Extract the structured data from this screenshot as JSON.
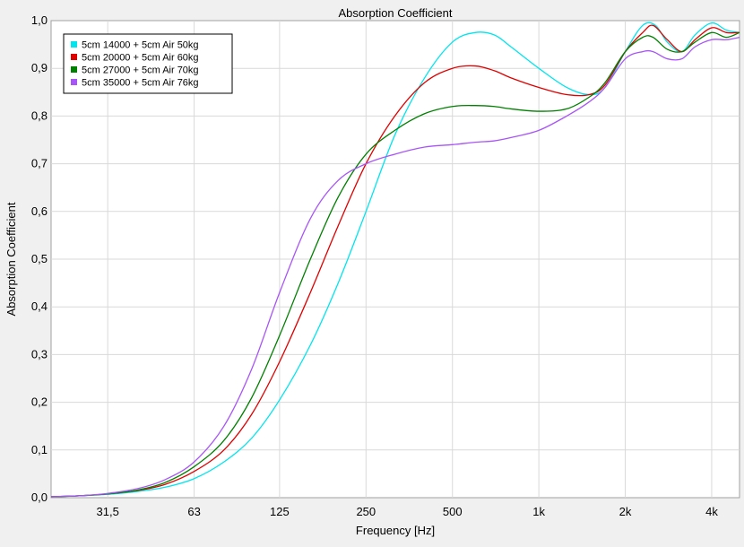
{
  "chart_data": {
    "type": "line",
    "title": "Absorption Coefficient",
    "xlabel": "Frequency [Hz]",
    "ylabel": "Absorption Coefficient",
    "x_scale": "log",
    "xlim": [
      20,
      5000
    ],
    "ylim": [
      0,
      1
    ],
    "grid": true,
    "legend_position": "top-left",
    "x_ticks": [
      {
        "value": 31.5,
        "label": "31,5"
      },
      {
        "value": 63,
        "label": "63"
      },
      {
        "value": 125,
        "label": "125"
      },
      {
        "value": 250,
        "label": "250"
      },
      {
        "value": 500,
        "label": "500"
      },
      {
        "value": 1000,
        "label": "1k"
      },
      {
        "value": 2000,
        "label": "2k"
      },
      {
        "value": 4000,
        "label": "4k"
      }
    ],
    "y_ticks": [
      {
        "value": 0,
        "label": "0,0"
      },
      {
        "value": 0.1,
        "label": "0,1"
      },
      {
        "value": 0.2,
        "label": "0,2"
      },
      {
        "value": 0.3,
        "label": "0,3"
      },
      {
        "value": 0.4,
        "label": "0,4"
      },
      {
        "value": 0.5,
        "label": "0,5"
      },
      {
        "value": 0.6,
        "label": "0,6"
      },
      {
        "value": 0.7,
        "label": "0,7"
      },
      {
        "value": 0.8,
        "label": "0,8"
      },
      {
        "value": 0.9,
        "label": "0,9"
      },
      {
        "value": 1,
        "label": "1,0"
      }
    ],
    "series": [
      {
        "name": "5cm 14000 + 5cm Air 50kg",
        "color": "#00e5ee",
        "points": [
          [
            20,
            0.002
          ],
          [
            25,
            0.004
          ],
          [
            31.5,
            0.007
          ],
          [
            40,
            0.013
          ],
          [
            50,
            0.022
          ],
          [
            63,
            0.04
          ],
          [
            80,
            0.075
          ],
          [
            100,
            0.125
          ],
          [
            125,
            0.205
          ],
          [
            160,
            0.32
          ],
          [
            200,
            0.45
          ],
          [
            250,
            0.6
          ],
          [
            315,
            0.76
          ],
          [
            400,
            0.88
          ],
          [
            500,
            0.955
          ],
          [
            600,
            0.975
          ],
          [
            700,
            0.97
          ],
          [
            800,
            0.945
          ],
          [
            1000,
            0.9
          ],
          [
            1250,
            0.86
          ],
          [
            1500,
            0.845
          ],
          [
            1700,
            0.86
          ],
          [
            2000,
            0.935
          ],
          [
            2300,
            0.99
          ],
          [
            2550,
            0.99
          ],
          [
            2800,
            0.955
          ],
          [
            3150,
            0.935
          ],
          [
            3500,
            0.97
          ],
          [
            4000,
            0.995
          ],
          [
            4500,
            0.98
          ],
          [
            5000,
            0.975
          ]
        ]
      },
      {
        "name": "5cm 20000 + 5cm Air 60kg",
        "color": "#e00000",
        "points": [
          [
            20,
            0.002
          ],
          [
            25,
            0.004
          ],
          [
            31.5,
            0.008
          ],
          [
            40,
            0.015
          ],
          [
            50,
            0.028
          ],
          [
            63,
            0.055
          ],
          [
            80,
            0.1
          ],
          [
            100,
            0.175
          ],
          [
            125,
            0.285
          ],
          [
            160,
            0.43
          ],
          [
            200,
            0.57
          ],
          [
            250,
            0.7
          ],
          [
            315,
            0.8
          ],
          [
            400,
            0.87
          ],
          [
            500,
            0.9
          ],
          [
            600,
            0.905
          ],
          [
            700,
            0.895
          ],
          [
            800,
            0.88
          ],
          [
            1000,
            0.86
          ],
          [
            1250,
            0.845
          ],
          [
            1500,
            0.845
          ],
          [
            1700,
            0.865
          ],
          [
            2000,
            0.935
          ],
          [
            2300,
            0.975
          ],
          [
            2500,
            0.99
          ],
          [
            2800,
            0.96
          ],
          [
            3150,
            0.935
          ],
          [
            3500,
            0.96
          ],
          [
            4000,
            0.985
          ],
          [
            4500,
            0.975
          ],
          [
            5000,
            0.975
          ]
        ]
      },
      {
        "name": "5cm 27000 + 5cm Air 70kg",
        "color": "#008000",
        "points": [
          [
            20,
            0.002
          ],
          [
            25,
            0.004
          ],
          [
            31.5,
            0.008
          ],
          [
            40,
            0.016
          ],
          [
            50,
            0.032
          ],
          [
            63,
            0.065
          ],
          [
            80,
            0.12
          ],
          [
            100,
            0.21
          ],
          [
            125,
            0.34
          ],
          [
            160,
            0.5
          ],
          [
            200,
            0.63
          ],
          [
            250,
            0.72
          ],
          [
            315,
            0.77
          ],
          [
            400,
            0.805
          ],
          [
            500,
            0.82
          ],
          [
            600,
            0.822
          ],
          [
            700,
            0.82
          ],
          [
            800,
            0.815
          ],
          [
            1000,
            0.81
          ],
          [
            1250,
            0.815
          ],
          [
            1500,
            0.84
          ],
          [
            1700,
            0.87
          ],
          [
            2000,
            0.935
          ],
          [
            2300,
            0.965
          ],
          [
            2500,
            0.965
          ],
          [
            2800,
            0.94
          ],
          [
            3150,
            0.935
          ],
          [
            3500,
            0.955
          ],
          [
            4000,
            0.975
          ],
          [
            4500,
            0.965
          ],
          [
            5000,
            0.975
          ]
        ]
      },
      {
        "name": "5cm 35000 + 5cm Air 76kg",
        "color": "#a855f7",
        "points": [
          [
            20,
            0.002
          ],
          [
            25,
            0.004
          ],
          [
            31.5,
            0.009
          ],
          [
            40,
            0.019
          ],
          [
            50,
            0.038
          ],
          [
            63,
            0.075
          ],
          [
            80,
            0.15
          ],
          [
            100,
            0.27
          ],
          [
            125,
            0.43
          ],
          [
            160,
            0.585
          ],
          [
            200,
            0.665
          ],
          [
            250,
            0.7
          ],
          [
            315,
            0.72
          ],
          [
            400,
            0.735
          ],
          [
            500,
            0.74
          ],
          [
            600,
            0.745
          ],
          [
            700,
            0.748
          ],
          [
            800,
            0.755
          ],
          [
            1000,
            0.77
          ],
          [
            1250,
            0.8
          ],
          [
            1500,
            0.83
          ],
          [
            1700,
            0.86
          ],
          [
            2000,
            0.92
          ],
          [
            2300,
            0.935
          ],
          [
            2500,
            0.935
          ],
          [
            2800,
            0.92
          ],
          [
            3150,
            0.92
          ],
          [
            3500,
            0.945
          ],
          [
            4000,
            0.96
          ],
          [
            4500,
            0.96
          ],
          [
            5000,
            0.965
          ]
        ]
      }
    ]
  }
}
